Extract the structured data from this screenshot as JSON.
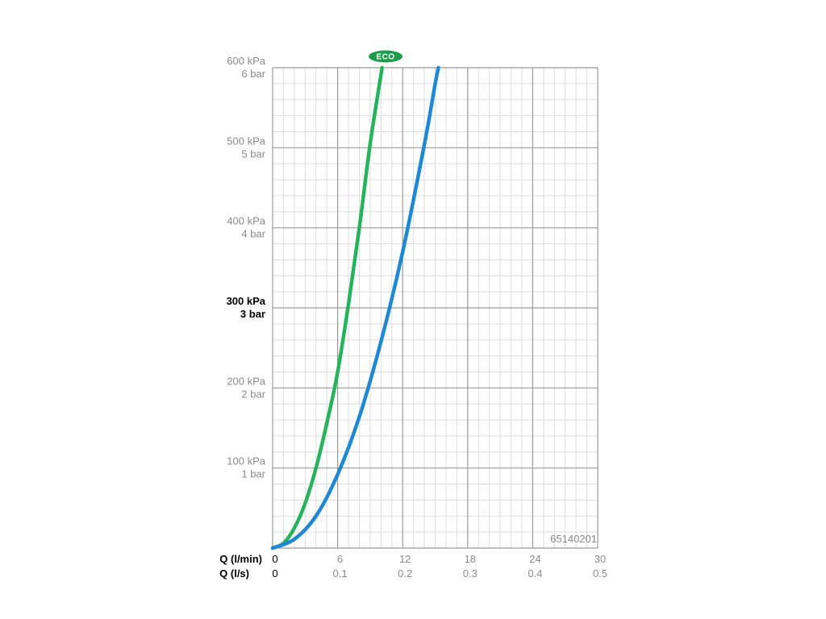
{
  "chart_data": {
    "type": "line",
    "x_axis": {
      "name_primary": "Q (l/min)",
      "name_secondary": "Q (l/s)",
      "min": 0,
      "max": 30,
      "ticks_primary": [
        "0",
        "6",
        "12",
        "18",
        "24",
        "30"
      ],
      "ticks_secondary": [
        "0",
        "0.1",
        "0.2",
        "0.3",
        "0.4",
        "0.5"
      ],
      "tick_values": [
        0,
        6,
        12,
        18,
        24,
        30
      ]
    },
    "y_axis": {
      "min": 0,
      "max": 600,
      "tick_values": [
        100,
        200,
        300,
        400,
        500,
        600
      ],
      "ticks_kpa": [
        "100 kPa",
        "200 kPa",
        "300 kPa",
        "400 kPa",
        "500 kPa",
        "600 kPa"
      ],
      "ticks_bar": [
        "1 bar",
        "2 bar",
        "3 bar",
        "4 bar",
        "5 bar",
        "6 bar"
      ],
      "highlight_tick": 300
    },
    "grid": true,
    "series": [
      {
        "name": "ECO",
        "color": "#27b35b",
        "points": [
          [
            0,
            0
          ],
          [
            1,
            6
          ],
          [
            2,
            25
          ],
          [
            3,
            56
          ],
          [
            4,
            100
          ],
          [
            5,
            156
          ],
          [
            6,
            220
          ],
          [
            7,
            305
          ],
          [
            8,
            400
          ],
          [
            9,
            505
          ],
          [
            10.1,
            600
          ]
        ]
      },
      {
        "color": "#1e88d4",
        "points": [
          [
            0,
            0
          ],
          [
            2,
            11
          ],
          [
            4,
            40
          ],
          [
            6,
            92
          ],
          [
            8,
            164
          ],
          [
            10,
            258
          ],
          [
            12,
            370
          ],
          [
            14,
            504
          ],
          [
            15,
            580
          ],
          [
            15.3,
            600
          ]
        ]
      }
    ],
    "annotations": [
      "65140201"
    ]
  },
  "colors": {
    "grid_major": "#9b9b9b",
    "grid_minor": "#dddddd",
    "eco_badge": "#1e9c4c"
  }
}
